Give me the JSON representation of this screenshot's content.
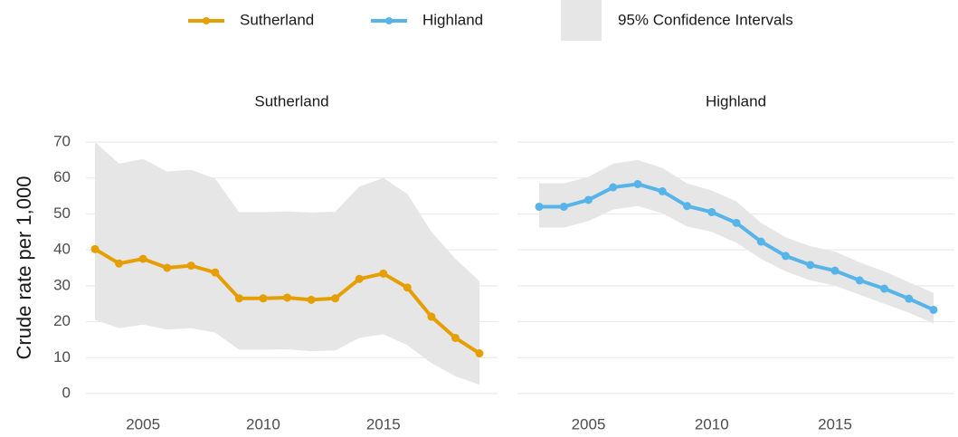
{
  "chart_data": [
    {
      "type": "line",
      "title": "Sutherland",
      "ylabel": "Crude rate per 1,000",
      "band_label": "95% Confidence Intervals",
      "band_color": "#e6e6e6",
      "x": [
        2003,
        2004,
        2005,
        2006,
        2007,
        2008,
        2009,
        2010,
        2011,
        2012,
        2013,
        2014,
        2015,
        2016,
        2017,
        2018,
        2019
      ],
      "xlim": [
        2003,
        2019
      ],
      "xticks": [
        2005,
        2010,
        2015
      ],
      "ylim": [
        0,
        70
      ],
      "yticks": [
        0,
        10,
        20,
        30,
        40,
        50,
        60,
        70
      ],
      "grid": true,
      "series": [
        {
          "name": "Sutherland",
          "color": "#e69f00",
          "values": [
            40.2,
            36.2,
            37.5,
            35,
            35.6,
            33.7,
            26.5,
            26.5,
            26.7,
            26.1,
            26.5,
            31.9,
            33.4,
            29.5,
            21.4,
            15.5,
            11.2
          ],
          "upper": [
            70,
            64,
            65.3,
            61.8,
            62.3,
            59.8,
            50.5,
            50.5,
            50.7,
            50.4,
            50.6,
            57.6,
            60,
            55.6,
            45,
            37.5,
            31.3
          ],
          "lower": [
            20.5,
            18.2,
            19.2,
            17.8,
            18.2,
            17,
            12.2,
            12.2,
            12.3,
            11.8,
            12,
            15.5,
            16.5,
            13.5,
            8.5,
            4.8,
            2.5
          ]
        }
      ]
    },
    {
      "type": "line",
      "title": "Highland",
      "x": [
        2003,
        2004,
        2005,
        2006,
        2007,
        2008,
        2009,
        2010,
        2011,
        2012,
        2013,
        2014,
        2015,
        2016,
        2017,
        2018,
        2019
      ],
      "xlim": [
        2003,
        2019
      ],
      "xticks": [
        2005,
        2010,
        2015
      ],
      "ylim": [
        0,
        70
      ],
      "grid": true,
      "series": [
        {
          "name": "Highland",
          "color": "#56b4e9",
          "values": [
            52,
            52,
            53.9,
            57.4,
            58.3,
            56.3,
            52.2,
            50.5,
            47.5,
            42.3,
            38.3,
            35.8,
            34.2,
            31.5,
            29.2,
            26.4,
            23.3
          ],
          "upper": [
            58.5,
            58.5,
            60.3,
            64,
            65,
            62.8,
            58.5,
            56.5,
            53.5,
            47.5,
            43.5,
            41,
            39.5,
            36.5,
            34,
            31,
            28
          ],
          "lower": [
            46.2,
            46.2,
            48,
            51.2,
            52.2,
            50.2,
            46.5,
            45,
            42,
            37.5,
            34,
            31.5,
            30,
            27.5,
            25,
            22.5,
            19.5
          ]
        }
      ]
    }
  ]
}
